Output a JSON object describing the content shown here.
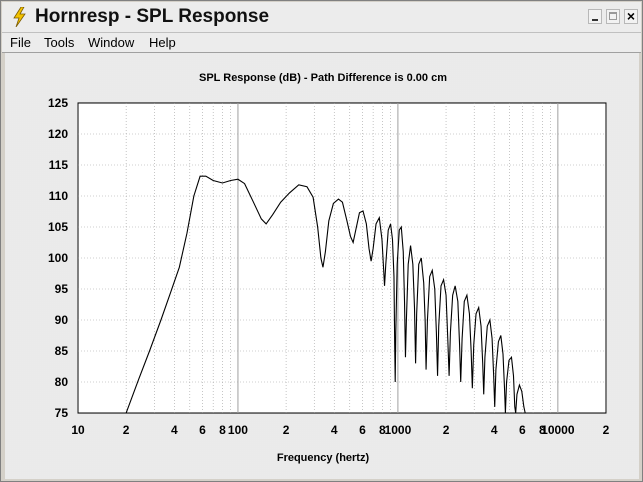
{
  "window": {
    "title": "Hornresp - SPL Response",
    "controls": {
      "minimize": "_",
      "maximize": "□",
      "close": "×"
    }
  },
  "menu": [
    "File",
    "Tools",
    "Window",
    "Help"
  ],
  "colors": {
    "curve": "#000000",
    "grid": "#a0a0a0",
    "plot_bg": "#ffffff",
    "chrome": "#ececec"
  },
  "chart_data": {
    "type": "line",
    "title": "SPL Response (dB) - Path Difference is 0.00 cm",
    "xlabel": "Frequency (hertz)",
    "ylabel": "",
    "xscale": "log",
    "xlim": [
      10,
      20000
    ],
    "ylim": [
      75,
      125
    ],
    "y_ticks": [
      75,
      80,
      85,
      90,
      95,
      100,
      105,
      110,
      115,
      120,
      125
    ],
    "x_tick_labels": [
      {
        "x": 10,
        "label": "10"
      },
      {
        "x": 20,
        "label": "2"
      },
      {
        "x": 40,
        "label": "4"
      },
      {
        "x": 60,
        "label": "6"
      },
      {
        "x": 80,
        "label": "8"
      },
      {
        "x": 100,
        "label": "100"
      },
      {
        "x": 200,
        "label": "2"
      },
      {
        "x": 400,
        "label": "4"
      },
      {
        "x": 600,
        "label": "6"
      },
      {
        "x": 800,
        "label": "8"
      },
      {
        "x": 1000,
        "label": "1000"
      },
      {
        "x": 2000,
        "label": "2"
      },
      {
        "x": 4000,
        "label": "4"
      },
      {
        "x": 6000,
        "label": "6"
      },
      {
        "x": 8000,
        "label": "8"
      },
      {
        "x": 10000,
        "label": "10000"
      },
      {
        "x": 20000,
        "label": "2"
      }
    ],
    "grid": true,
    "legend": "none",
    "series": [
      {
        "points": [
          [
            20,
            75
          ],
          [
            24,
            80.5
          ],
          [
            28,
            85
          ],
          [
            33,
            90
          ],
          [
            38,
            94.5
          ],
          [
            43,
            98.5
          ],
          [
            48,
            104
          ],
          [
            53,
            110
          ],
          [
            58,
            113.2
          ],
          [
            63,
            113.2
          ],
          [
            70,
            112.5
          ],
          [
            80,
            112.1
          ],
          [
            90,
            112.5
          ],
          [
            100,
            112.7
          ],
          [
            110,
            112
          ],
          [
            125,
            109
          ],
          [
            140,
            106.3
          ],
          [
            150,
            105.5
          ],
          [
            165,
            107
          ],
          [
            185,
            109
          ],
          [
            210,
            110.5
          ],
          [
            240,
            111.8
          ],
          [
            270,
            111.5
          ],
          [
            295,
            109.8
          ],
          [
            315,
            105
          ],
          [
            330,
            100
          ],
          [
            340,
            98.5
          ],
          [
            352,
            101
          ],
          [
            370,
            106
          ],
          [
            395,
            108.8
          ],
          [
            425,
            109.5
          ],
          [
            450,
            109
          ],
          [
            480,
            106
          ],
          [
            505,
            103.5
          ],
          [
            525,
            102.5
          ],
          [
            545,
            104.5
          ],
          [
            575,
            107.3
          ],
          [
            605,
            107.6
          ],
          [
            635,
            105.5
          ],
          [
            660,
            101.5
          ],
          [
            680,
            99.5
          ],
          [
            700,
            101.5
          ],
          [
            730,
            105.5
          ],
          [
            765,
            106.5
          ],
          [
            795,
            103
          ],
          [
            815,
            98
          ],
          [
            825,
            95.5
          ],
          [
            840,
            99
          ],
          [
            870,
            104.5
          ],
          [
            900,
            105.5
          ],
          [
            925,
            103
          ],
          [
            945,
            97
          ],
          [
            955,
            86
          ],
          [
            962,
            80
          ],
          [
            970,
            88
          ],
          [
            990,
            99
          ],
          [
            1020,
            104.5
          ],
          [
            1050,
            105
          ],
          [
            1080,
            101
          ],
          [
            1100,
            93
          ],
          [
            1115,
            84
          ],
          [
            1130,
            90
          ],
          [
            1160,
            99
          ],
          [
            1200,
            102
          ],
          [
            1240,
            99
          ],
          [
            1270,
            92
          ],
          [
            1290,
            83
          ],
          [
            1310,
            91
          ],
          [
            1350,
            99
          ],
          [
            1400,
            100
          ],
          [
            1450,
            96
          ],
          [
            1480,
            90
          ],
          [
            1500,
            82
          ],
          [
            1530,
            90
          ],
          [
            1580,
            97
          ],
          [
            1640,
            98
          ],
          [
            1700,
            95
          ],
          [
            1740,
            88
          ],
          [
            1770,
            81
          ],
          [
            1800,
            89
          ],
          [
            1860,
            95.5
          ],
          [
            1930,
            96.5
          ],
          [
            2000,
            94
          ],
          [
            2050,
            87
          ],
          [
            2090,
            81
          ],
          [
            2130,
            88
          ],
          [
            2200,
            94
          ],
          [
            2280,
            95.5
          ],
          [
            2370,
            93
          ],
          [
            2430,
            86
          ],
          [
            2470,
            80
          ],
          [
            2520,
            87
          ],
          [
            2600,
            93
          ],
          [
            2700,
            94
          ],
          [
            2800,
            91
          ],
          [
            2870,
            85
          ],
          [
            2920,
            79
          ],
          [
            2980,
            86
          ],
          [
            3080,
            91
          ],
          [
            3200,
            92
          ],
          [
            3310,
            89
          ],
          [
            3390,
            83
          ],
          [
            3440,
            78
          ],
          [
            3500,
            84
          ],
          [
            3620,
            89
          ],
          [
            3760,
            90
          ],
          [
            3880,
            87
          ],
          [
            3970,
            81
          ],
          [
            4030,
            76
          ],
          [
            4100,
            82
          ],
          [
            4250,
            86.5
          ],
          [
            4400,
            87.5
          ],
          [
            4540,
            84.5
          ],
          [
            4640,
            79
          ],
          [
            4700,
            75
          ],
          [
            4780,
            80
          ],
          [
            4950,
            83.5
          ],
          [
            5130,
            84
          ],
          [
            5280,
            81
          ],
          [
            5380,
            76
          ],
          [
            5450,
            75
          ],
          [
            5550,
            78
          ],
          [
            5750,
            79.5
          ],
          [
            5950,
            78.5
          ],
          [
            6130,
            76
          ],
          [
            6250,
            75
          ]
        ]
      }
    ]
  }
}
